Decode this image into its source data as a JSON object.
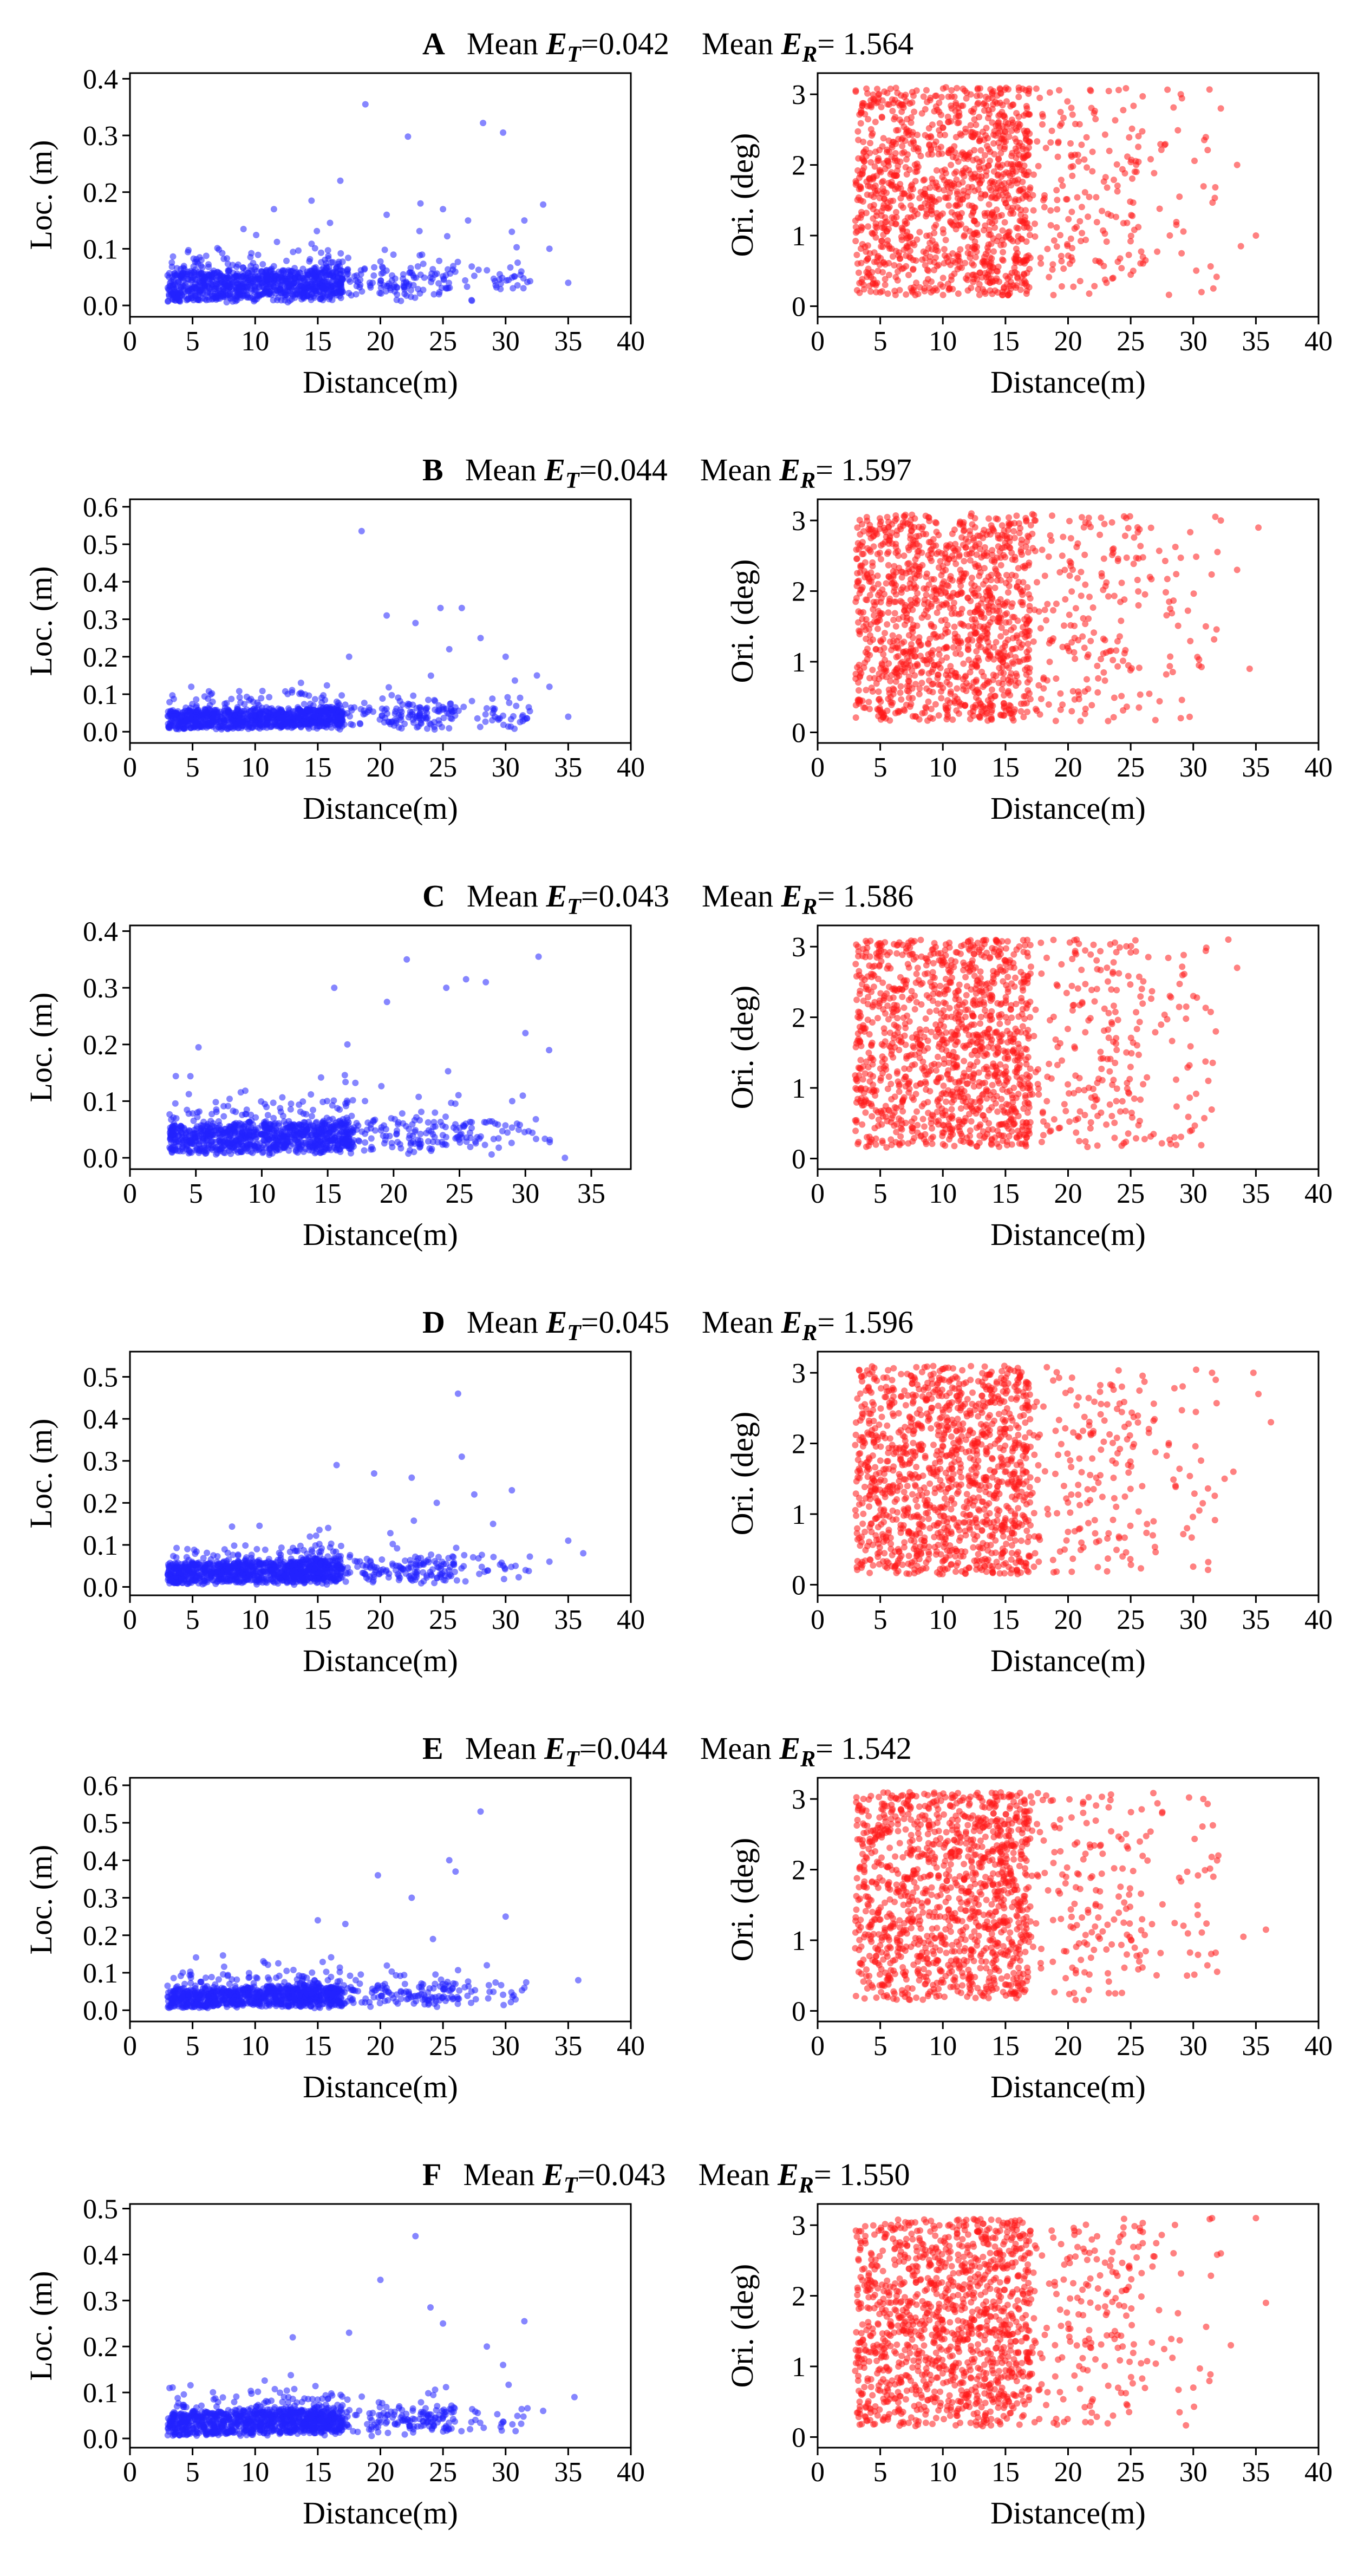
{
  "chart_data": [
    {
      "panel": "A",
      "title": {
        "letter": "A",
        "et_prefix": "Mean ",
        "et_symbol": "E",
        "et_sub": "T",
        "et_value": "=0.042",
        "er_prefix": "Mean ",
        "er_symbol": "E",
        "er_sub": "R",
        "er_value": "= 1.564"
      },
      "charts": [
        {
          "type": "scatter",
          "side": "left",
          "xlabel": "Distance(m)",
          "ylabel": "Loc. (m)",
          "xlim": [
            0,
            40
          ],
          "ylim": [
            -0.02,
            0.41
          ],
          "xticks": [
            "0",
            "5",
            "10",
            "15",
            "20",
            "25",
            "30",
            "35",
            "40"
          ],
          "yticks": [
            "0.0",
            "0.1",
            "0.2",
            "0.3",
            "0.4"
          ],
          "color": "#2222ff",
          "points": {
            "n": 1100,
            "seed": 11,
            "model": "loc"
          },
          "outliers": [
            [
              18.8,
              0.355
            ],
            [
              28.2,
              0.322
            ],
            [
              29.8,
              0.305
            ],
            [
              22.2,
              0.298
            ],
            [
              16.8,
              0.22
            ],
            [
              33.0,
              0.178
            ],
            [
              14.5,
              0.185
            ],
            [
              31.5,
              0.15
            ],
            [
              25.0,
              0.17
            ],
            [
              20.5,
              0.16
            ],
            [
              23.2,
              0.18
            ],
            [
              27.0,
              0.15
            ],
            [
              11.5,
              0.17
            ],
            [
              35.0,
              0.04
            ],
            [
              33.5,
              0.1
            ],
            [
              30.5,
              0.13
            ]
          ]
        },
        {
          "type": "scatter",
          "side": "right",
          "xlabel": "Distance(m)",
          "ylabel": "Ori. (deg)",
          "xlim": [
            0,
            40
          ],
          "ylim": [
            -0.15,
            3.3
          ],
          "xticks": [
            "0",
            "5",
            "10",
            "15",
            "20",
            "25",
            "30",
            "35",
            "40"
          ],
          "yticks": [
            "0",
            "1",
            "2",
            "3"
          ],
          "color": "#ff1a1a",
          "points": {
            "n": 1400,
            "seed": 12,
            "model": "ori"
          },
          "outliers": [
            [
              33.8,
              0.85
            ],
            [
              35.0,
              1.0
            ],
            [
              32.2,
              2.8
            ],
            [
              33.5,
              2.0
            ],
            [
              31.6,
              0.25
            ],
            [
              29.0,
              3.0
            ]
          ]
        }
      ]
    },
    {
      "panel": "B",
      "title": {
        "letter": "B",
        "et_prefix": "Mean ",
        "et_symbol": "E",
        "et_sub": "T",
        "et_value": "=0.044",
        "er_prefix": "Mean ",
        "er_symbol": "E",
        "er_sub": "R",
        "er_value": "= 1.597"
      },
      "charts": [
        {
          "type": "scatter",
          "side": "left",
          "xlabel": "Distance(m)",
          "ylabel": "Loc. (m)",
          "xlim": [
            0,
            40
          ],
          "ylim": [
            -0.03,
            0.62
          ],
          "xticks": [
            "0",
            "5",
            "10",
            "15",
            "20",
            "25",
            "30",
            "35",
            "40"
          ],
          "yticks": [
            "0.0",
            "0.1",
            "0.2",
            "0.3",
            "0.4",
            "0.5",
            "0.6"
          ],
          "color": "#2222ff",
          "points": {
            "n": 1100,
            "seed": 21,
            "model": "loc"
          },
          "outliers": [
            [
              18.5,
              0.535
            ],
            [
              24.8,
              0.33
            ],
            [
              26.5,
              0.33
            ],
            [
              20.5,
              0.31
            ],
            [
              22.8,
              0.29
            ],
            [
              28.0,
              0.25
            ],
            [
              25.5,
              0.22
            ],
            [
              32.5,
              0.15
            ],
            [
              30.0,
              0.2
            ],
            [
              17.5,
              0.2
            ],
            [
              35.0,
              0.04
            ],
            [
              33.5,
              0.12
            ]
          ]
        },
        {
          "type": "scatter",
          "side": "right",
          "xlabel": "Distance(m)",
          "ylabel": "Ori. (deg)",
          "xlim": [
            0,
            40
          ],
          "ylim": [
            -0.15,
            3.3
          ],
          "xticks": [
            "0",
            "5",
            "10",
            "15",
            "20",
            "25",
            "30",
            "35",
            "40"
          ],
          "yticks": [
            "0",
            "1",
            "2",
            "3"
          ],
          "color": "#ff1a1a",
          "points": {
            "n": 1400,
            "seed": 22,
            "model": "ori"
          },
          "outliers": [
            [
              34.5,
              0.9
            ],
            [
              35.2,
              2.9
            ],
            [
              33.5,
              2.3
            ],
            [
              32.2,
              3.0
            ],
            [
              29.0,
              0.2
            ],
            [
              31.0,
              1.5
            ]
          ]
        }
      ]
    },
    {
      "panel": "C",
      "title": {
        "letter": "C",
        "et_prefix": "Mean ",
        "et_symbol": "E",
        "et_sub": "T",
        "et_value": "=0.043",
        "er_prefix": "Mean ",
        "er_symbol": "E",
        "er_sub": "R",
        "er_value": "= 1.586"
      },
      "charts": [
        {
          "type": "scatter",
          "side": "left",
          "xlabel": "Distance(m)",
          "ylabel": "Loc. (m)",
          "xlim": [
            0,
            38
          ],
          "ylim": [
            -0.02,
            0.41
          ],
          "xticks": [
            "0",
            "5",
            "10",
            "15",
            "20",
            "25",
            "30",
            "35"
          ],
          "yticks": [
            "0.0",
            "0.1",
            "0.2",
            "0.3",
            "0.4"
          ],
          "color": "#2222ff",
          "points": {
            "n": 1100,
            "seed": 31,
            "model": "loc"
          },
          "outliers": [
            [
              21.0,
              0.35
            ],
            [
              31.0,
              0.355
            ],
            [
              25.5,
              0.315
            ],
            [
              24.0,
              0.3
            ],
            [
              15.5,
              0.3
            ],
            [
              19.5,
              0.275
            ],
            [
              27.0,
              0.31
            ],
            [
              30.0,
              0.22
            ],
            [
              31.8,
              0.19
            ],
            [
              16.5,
              0.2
            ],
            [
              5.2,
              0.195
            ],
            [
              33.0,
              0.0
            ],
            [
              29.0,
              0.1
            ]
          ]
        },
        {
          "type": "scatter",
          "side": "right",
          "xlabel": "Distance(m)",
          "ylabel": "Ori. (deg)",
          "xlim": [
            0,
            40
          ],
          "ylim": [
            -0.15,
            3.3
          ],
          "xticks": [
            "0",
            "5",
            "10",
            "15",
            "20",
            "25",
            "30",
            "35",
            "40"
          ],
          "yticks": [
            "0",
            "1",
            "2",
            "3"
          ],
          "color": "#ff1a1a",
          "points": {
            "n": 1400,
            "seed": 32,
            "model": "ori"
          },
          "outliers": [
            [
              32.8,
              3.1
            ],
            [
              33.5,
              2.7
            ],
            [
              31.8,
              1.8
            ],
            [
              31.2,
              1.1
            ],
            [
              28.5,
              0.3
            ],
            [
              30.0,
              2.3
            ]
          ]
        }
      ]
    },
    {
      "panel": "D",
      "title": {
        "letter": "D",
        "et_prefix": "Mean ",
        "et_symbol": "E",
        "et_sub": "T",
        "et_value": "=0.045",
        "er_prefix": "Mean ",
        "er_symbol": "E",
        "er_sub": "R",
        "er_value": "= 1.596"
      },
      "charts": [
        {
          "type": "scatter",
          "side": "left",
          "xlabel": "Distance(m)",
          "ylabel": "Loc. (m)",
          "xlim": [
            0,
            40
          ],
          "ylim": [
            -0.02,
            0.56
          ],
          "xticks": [
            "0",
            "5",
            "10",
            "15",
            "20",
            "25",
            "30",
            "35",
            "40"
          ],
          "yticks": [
            "0.0",
            "0.1",
            "0.2",
            "0.3",
            "0.4",
            "0.5"
          ],
          "color": "#2222ff",
          "points": {
            "n": 1150,
            "seed": 41,
            "model": "loc"
          },
          "outliers": [
            [
              26.2,
              0.46
            ],
            [
              26.5,
              0.31
            ],
            [
              16.5,
              0.29
            ],
            [
              30.5,
              0.23
            ],
            [
              19.5,
              0.27
            ],
            [
              22.5,
              0.26
            ],
            [
              24.5,
              0.2
            ],
            [
              35.0,
              0.11
            ],
            [
              36.2,
              0.08
            ],
            [
              33.5,
              0.06
            ],
            [
              29.0,
              0.15
            ],
            [
              27.5,
              0.22
            ]
          ]
        },
        {
          "type": "scatter",
          "side": "right",
          "xlabel": "Distance(m)",
          "ylabel": "Ori. (deg)",
          "xlim": [
            0,
            40
          ],
          "ylim": [
            -0.15,
            3.3
          ],
          "xticks": [
            "0",
            "5",
            "10",
            "15",
            "20",
            "25",
            "30",
            "35",
            "40"
          ],
          "yticks": [
            "0",
            "1",
            "2",
            "3"
          ],
          "color": "#ff1a1a",
          "points": {
            "n": 1400,
            "seed": 42,
            "model": "ori"
          },
          "outliers": [
            [
              36.2,
              2.3
            ],
            [
              34.8,
              3.0
            ],
            [
              35.2,
              2.7
            ],
            [
              32.5,
              1.5
            ],
            [
              33.2,
              1.6
            ],
            [
              31.5,
              3.0
            ],
            [
              29.5,
              0.8
            ]
          ]
        }
      ]
    },
    {
      "panel": "E",
      "title": {
        "letter": "E",
        "et_prefix": "Mean ",
        "et_symbol": "E",
        "et_sub": "T",
        "et_value": "=0.044",
        "er_prefix": "Mean ",
        "er_symbol": "E",
        "er_sub": "R",
        "er_value": "= 1.542"
      },
      "charts": [
        {
          "type": "scatter",
          "side": "left",
          "xlabel": "Distance(m)",
          "ylabel": "Loc. (m)",
          "xlim": [
            0,
            40
          ],
          "ylim": [
            -0.03,
            0.62
          ],
          "xticks": [
            "0",
            "5",
            "10",
            "15",
            "20",
            "25",
            "30",
            "35",
            "40"
          ],
          "yticks": [
            "0.0",
            "0.1",
            "0.2",
            "0.3",
            "0.4",
            "0.5",
            "0.6"
          ],
          "color": "#2222ff",
          "points": {
            "n": 1100,
            "seed": 51,
            "model": "loc"
          },
          "outliers": [
            [
              28.0,
              0.53
            ],
            [
              25.5,
              0.4
            ],
            [
              26.0,
              0.37
            ],
            [
              19.8,
              0.36
            ],
            [
              22.5,
              0.3
            ],
            [
              30.0,
              0.25
            ],
            [
              15.0,
              0.24
            ],
            [
              17.2,
              0.23
            ],
            [
              24.2,
              0.19
            ],
            [
              35.8,
              0.08
            ],
            [
              31.5,
              0.06
            ],
            [
              28.5,
              0.12
            ]
          ]
        },
        {
          "type": "scatter",
          "side": "right",
          "xlabel": "Distance(m)",
          "ylabel": "Ori. (deg)",
          "xlim": [
            0,
            40
          ],
          "ylim": [
            -0.15,
            3.3
          ],
          "xticks": [
            "0",
            "5",
            "10",
            "15",
            "20",
            "25",
            "30",
            "35",
            "40"
          ],
          "yticks": [
            "0",
            "1",
            "2",
            "3"
          ],
          "color": "#ff1a1a",
          "points": {
            "n": 1400,
            "seed": 52,
            "model": "ori"
          },
          "outliers": [
            [
              35.8,
              1.15
            ],
            [
              34.0,
              1.05
            ],
            [
              32.0,
              2.2
            ],
            [
              31.6,
              1.9
            ],
            [
              30.8,
              3.0
            ],
            [
              29.5,
              0.5
            ]
          ]
        }
      ]
    },
    {
      "panel": "F",
      "title": {
        "letter": "F",
        "et_prefix": "Mean ",
        "et_symbol": "E",
        "et_sub": "T",
        "et_value": "=0.043",
        "er_prefix": "Mean ",
        "er_symbol": "E",
        "er_sub": "R",
        "er_value": "= 1.550"
      },
      "charts": [
        {
          "type": "scatter",
          "side": "left",
          "xlabel": "Distance(m)",
          "ylabel": "Loc. (m)",
          "xlim": [
            0,
            40
          ],
          "ylim": [
            -0.02,
            0.51
          ],
          "xticks": [
            "0",
            "5",
            "10",
            "15",
            "20",
            "25",
            "30",
            "35",
            "40"
          ],
          "yticks": [
            "0.0",
            "0.1",
            "0.2",
            "0.3",
            "0.4",
            "0.5"
          ],
          "color": "#2222ff",
          "points": {
            "n": 1150,
            "seed": 61,
            "model": "loc"
          },
          "outliers": [
            [
              22.8,
              0.44
            ],
            [
              20.0,
              0.345
            ],
            [
              24.0,
              0.285
            ],
            [
              31.5,
              0.255
            ],
            [
              25.0,
              0.25
            ],
            [
              13.0,
              0.22
            ],
            [
              17.5,
              0.23
            ],
            [
              28.5,
              0.2
            ],
            [
              35.5,
              0.09
            ],
            [
              33.0,
              0.06
            ],
            [
              29.8,
              0.16
            ]
          ]
        },
        {
          "type": "scatter",
          "side": "right",
          "xlabel": "Distance(m)",
          "ylabel": "Ori. (deg)",
          "xlim": [
            0,
            40
          ],
          "ylim": [
            -0.15,
            3.3
          ],
          "xticks": [
            "0",
            "5",
            "10",
            "15",
            "20",
            "25",
            "30",
            "35",
            "40"
          ],
          "yticks": [
            "0",
            "1",
            "2",
            "3"
          ],
          "color": "#ff1a1a",
          "points": {
            "n": 1400,
            "seed": 62,
            "model": "ori"
          },
          "outliers": [
            [
              35.0,
              3.1
            ],
            [
              35.8,
              1.9
            ],
            [
              31.5,
              3.1
            ],
            [
              33.0,
              1.3
            ],
            [
              32.2,
              2.6
            ],
            [
              30.0,
              0.7
            ]
          ]
        }
      ]
    }
  ]
}
